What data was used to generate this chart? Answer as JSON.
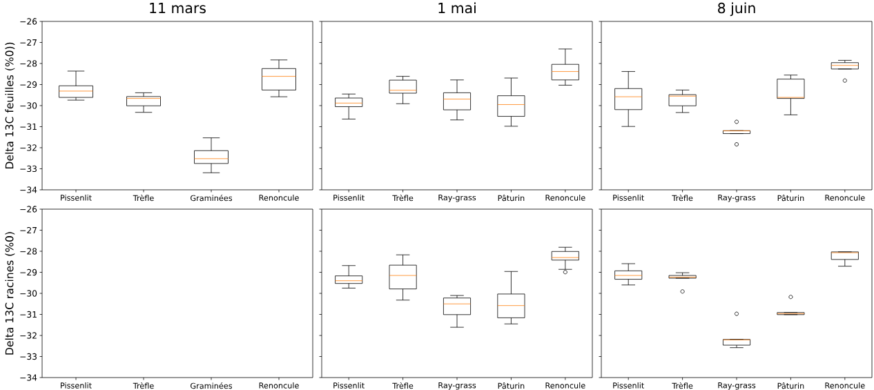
{
  "chart_data": [
    {
      "type": "box",
      "title": "11 mars",
      "ylabel": "Delta 13C feuilles (%0))",
      "categories": [
        "Pissenlit",
        "Trèfle",
        "Graminées",
        "Renoncule"
      ],
      "series": [
        {
          "color": "#000000",
          "boxes": [
            {
              "low": -29.74,
              "q1": -29.61,
              "median": -29.31,
              "q3": -29.06,
              "high": -28.36
            },
            {
              "low": -30.32,
              "q1": -30.01,
              "median": -29.66,
              "q3": -29.57,
              "high": -29.39
            },
            {
              "low": -33.19,
              "q1": -32.75,
              "median": -32.52,
              "q3": -32.14,
              "high": -31.53
            },
            {
              "low": -29.58,
              "q1": -29.26,
              "median": -28.61,
              "q3": -28.24,
              "high": -27.83
            }
          ]
        }
      ],
      "ylim": [
        -34,
        -26
      ],
      "yticks": [
        {
          "value": -34,
          "label": "−34"
        },
        {
          "value": -33,
          "label": "−33"
        },
        {
          "value": -32,
          "label": "−32"
        },
        {
          "value": -31,
          "label": "−31"
        },
        {
          "value": -30,
          "label": "−30"
        },
        {
          "value": -29,
          "label": "−29"
        },
        {
          "value": -28,
          "label": "−28"
        },
        {
          "value": -27,
          "label": "−27"
        },
        {
          "value": -26,
          "label": "−26"
        }
      ]
    },
    {
      "type": "box",
      "title": "1 mai",
      "categories": [
        "Pissenlit",
        "Trèfle",
        "Ray-grass",
        "Pâturin",
        "Renoncule"
      ],
      "series": [
        {
          "color": "#000000",
          "boxes": [
            {
              "low": -30.64,
              "q1": -30.05,
              "median": -29.88,
              "q3": -29.64,
              "high": -29.45
            },
            {
              "low": -29.91,
              "q1": -29.41,
              "median": -29.27,
              "q3": -28.79,
              "high": -28.61
            },
            {
              "low": -30.68,
              "q1": -30.2,
              "median": -29.69,
              "q3": -29.39,
              "high": -28.78
            },
            {
              "low": -30.98,
              "q1": -30.51,
              "median": -29.95,
              "q3": -29.53,
              "high": -28.69
            },
            {
              "low": -29.03,
              "q1": -28.78,
              "median": -28.38,
              "q3": -28.04,
              "high": -27.31
            }
          ]
        }
      ],
      "ylim": [
        -34,
        -26
      ],
      "yticks": [
        -34,
        -33,
        -32,
        -31,
        -30,
        -29,
        -28,
        -27,
        -26
      ],
      "tick_labels": "x"
    },
    {
      "type": "box",
      "title": "8 juin",
      "categories": [
        "Pissenlit",
        "Trèfle",
        "Ray-grass",
        "Pâturin",
        "Renoncule"
      ],
      "series": [
        {
          "color": "#000000",
          "boxes": [
            {
              "low": -30.99,
              "q1": -30.19,
              "median": -29.58,
              "q3": -29.19,
              "high": -28.38
            },
            {
              "low": -30.33,
              "q1": -30.01,
              "median": -29.55,
              "q3": -29.48,
              "high": -29.26
            },
            {
              "low": -31.33,
              "q1": -31.33,
              "median": -31.2,
              "q3": -31.19,
              "high": -31.19,
              "outliers": [
                -30.77,
                -31.84
              ]
            },
            {
              "low": -30.44,
              "q1": -29.66,
              "median": -29.61,
              "q3": -28.74,
              "high": -28.55
            },
            {
              "low": -28.26,
              "q1": -28.26,
              "median": -28.09,
              "q3": -27.96,
              "high": -27.85,
              "outliers": [
                -28.81
              ]
            }
          ]
        }
      ],
      "ylim": [
        -34,
        -26
      ],
      "yticks": [
        -34,
        -33,
        -32,
        -31,
        -30,
        -29,
        -28,
        -27,
        -26
      ],
      "tick_labels": "x"
    },
    {
      "type": "box",
      "ylabel": "Delta 13C racines (%0)",
      "categories": [
        "Pissenlit",
        "Trèfle",
        "Graminées",
        "Renoncule"
      ],
      "series": [
        {
          "color": "#000000",
          "boxes": [
            null,
            null,
            null,
            null
          ]
        }
      ],
      "ylim": [
        -34,
        -26
      ],
      "yticks": [
        {
          "value": -34,
          "label": "−34"
        },
        {
          "value": -33,
          "label": "−33"
        },
        {
          "value": -32,
          "label": "−32"
        },
        {
          "value": -31,
          "label": "−31"
        },
        {
          "value": -30,
          "label": "−30"
        },
        {
          "value": -29,
          "label": "−29"
        },
        {
          "value": -28,
          "label": "−28"
        },
        {
          "value": -27,
          "label": "−27"
        },
        {
          "value": -26,
          "label": "−26"
        }
      ]
    },
    {
      "type": "box",
      "categories": [
        "Pissenlit",
        "Trèfle",
        "Ray-grass",
        "Pâturin",
        "Renoncule"
      ],
      "series": [
        {
          "color": "#000000",
          "boxes": [
            {
              "low": -29.75,
              "q1": -29.53,
              "median": -29.4,
              "q3": -29.17,
              "high": -28.68
            },
            {
              "low": -30.32,
              "q1": -29.79,
              "median": -29.15,
              "q3": -28.66,
              "high": -28.17
            },
            {
              "low": -31.61,
              "q1": -31.01,
              "median": -30.5,
              "q3": -30.22,
              "high": -30.1
            },
            {
              "low": -31.45,
              "q1": -31.16,
              "median": -30.58,
              "q3": -30.03,
              "high": -28.96
            },
            {
              "low": -28.86,
              "q1": -28.42,
              "median": -28.3,
              "q3": -28.01,
              "high": -27.81,
              "outliers": [
                -28.99
              ]
            }
          ]
        }
      ],
      "ylim": [
        -34,
        -26
      ],
      "yticks": [
        -34,
        -33,
        -32,
        -31,
        -30,
        -29,
        -28,
        -27,
        -26
      ],
      "tick_labels": "x"
    },
    {
      "type": "box",
      "categories": [
        "Pissenlit",
        "Trèfle",
        "Ray-grass",
        "Pâturin",
        "Renoncule"
      ],
      "series": [
        {
          "color": "#000000",
          "boxes": [
            {
              "low": -29.6,
              "q1": -29.33,
              "median": -29.15,
              "q3": -28.93,
              "high": -28.59
            },
            {
              "low": -29.28,
              "q1": -29.28,
              "median": -29.23,
              "q3": -29.15,
              "high": -29.02,
              "outliers": [
                -29.91
              ]
            },
            {
              "low": -32.58,
              "q1": -32.46,
              "median": -32.21,
              "q3": -32.19,
              "high": -32.19,
              "outliers": [
                -30.97
              ]
            },
            {
              "low": -31.01,
              "q1": -31.01,
              "median": -30.96,
              "q3": -30.91,
              "high": -30.91,
              "outliers": [
                -30.17
              ]
            },
            {
              "low": -28.71,
              "q1": -28.39,
              "median": -28.07,
              "q3": -28.03,
              "high": -28.03
            }
          ]
        }
      ],
      "ylim": [
        -34,
        -26
      ],
      "yticks": [
        -34,
        -33,
        -32,
        -31,
        -30,
        -29,
        -28,
        -27,
        -26
      ],
      "tick_labels": "x"
    }
  ]
}
